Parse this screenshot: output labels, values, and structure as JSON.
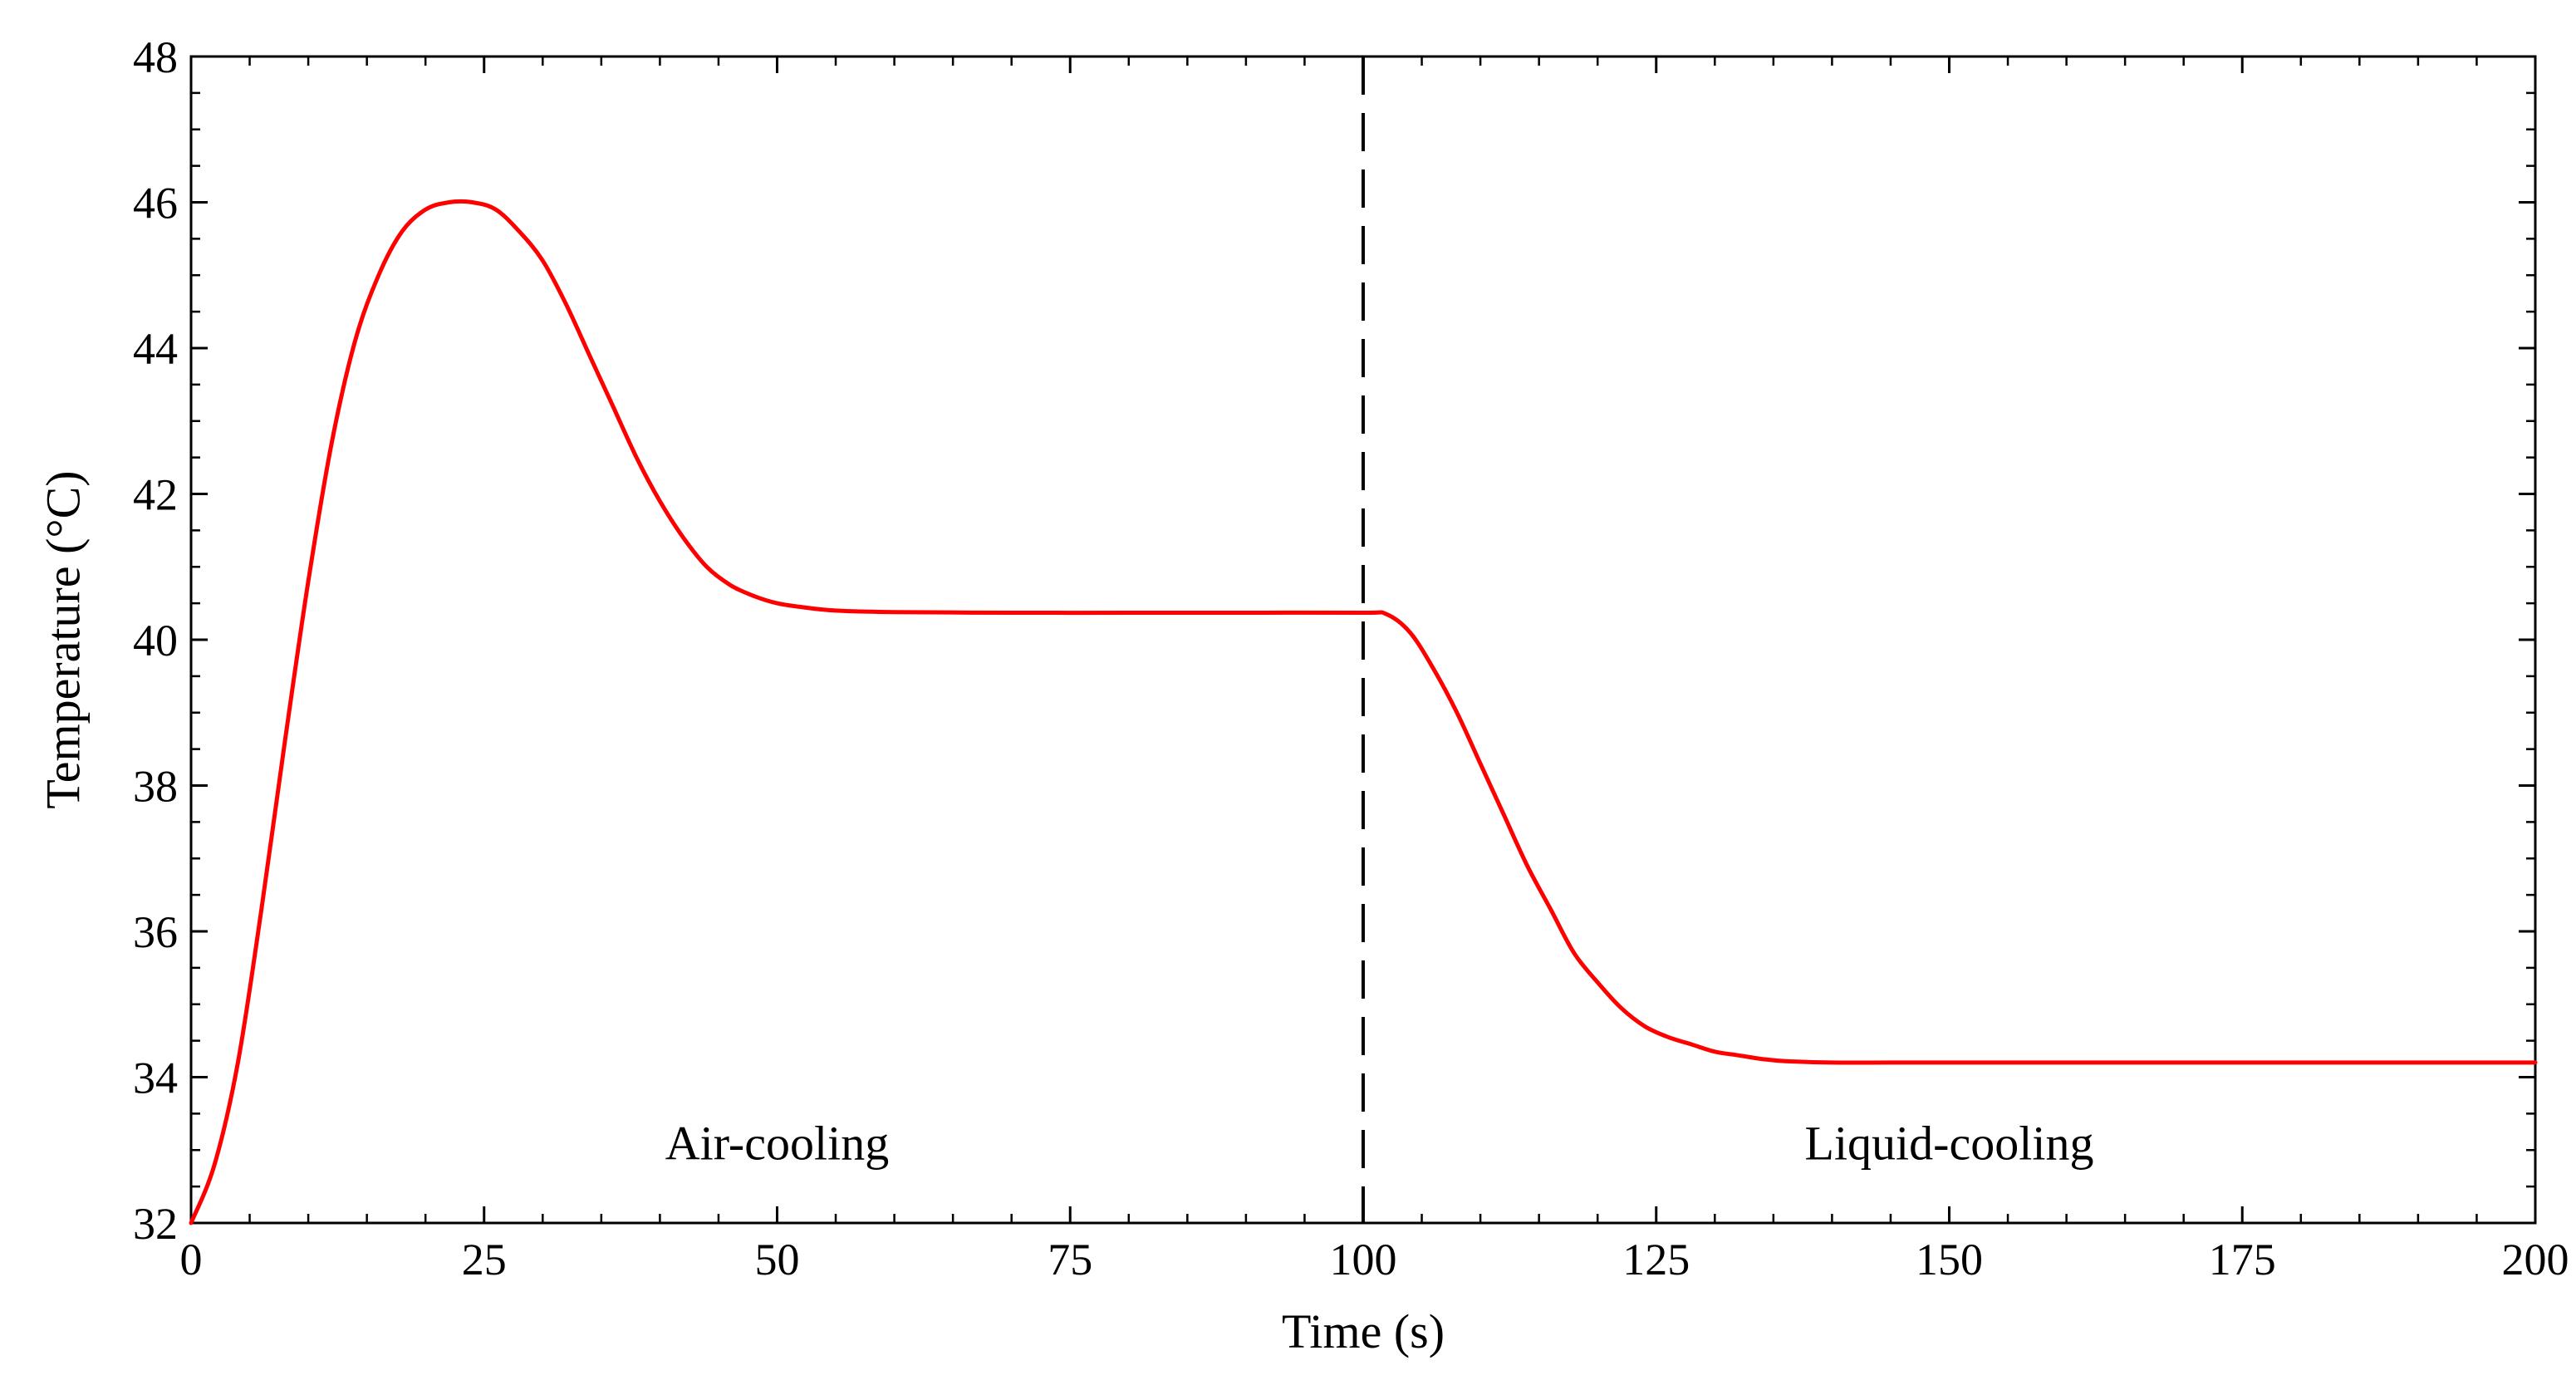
{
  "chart_data": {
    "type": "line",
    "title": "",
    "xlabel": "Time (s)",
    "ylabel": "Temperature (°C)",
    "xlim": [
      0,
      200
    ],
    "ylim": [
      32,
      48
    ],
    "xticks": [
      0,
      25,
      50,
      75,
      100,
      125,
      150,
      175,
      200
    ],
    "yticks": [
      32,
      34,
      36,
      38,
      40,
      42,
      44,
      46,
      48
    ],
    "grid": false,
    "series": [
      {
        "name": "Temperature",
        "color": "#ff0000",
        "x": [
          0,
          2,
          4,
          6,
          8,
          10,
          12,
          14,
          16,
          18,
          20,
          22,
          24,
          26,
          28,
          30,
          32,
          34,
          36,
          38,
          40,
          42,
          44,
          46,
          48,
          50,
          52,
          55,
          60,
          70,
          80,
          90,
          100,
          102,
          104,
          106,
          108,
          110,
          112,
          114,
          116,
          118,
          120,
          122,
          124,
          126,
          128,
          130,
          132,
          134,
          136,
          140,
          145,
          150,
          160,
          175,
          200
        ],
        "y": [
          32.0,
          32.8,
          34.2,
          36.3,
          38.6,
          40.8,
          42.7,
          44.1,
          45.0,
          45.6,
          45.9,
          46.0,
          46.0,
          45.9,
          45.6,
          45.2,
          44.6,
          43.9,
          43.2,
          42.5,
          41.9,
          41.4,
          41.0,
          40.75,
          40.6,
          40.5,
          40.45,
          40.4,
          40.38,
          40.37,
          40.37,
          40.37,
          40.37,
          40.35,
          40.1,
          39.6,
          39.0,
          38.3,
          37.6,
          36.9,
          36.3,
          35.7,
          35.3,
          34.95,
          34.7,
          34.55,
          34.45,
          34.35,
          34.3,
          34.25,
          34.22,
          34.2,
          34.2,
          34.2,
          34.2,
          34.2,
          34.2
        ]
      }
    ],
    "divider": {
      "x": 100,
      "style": "dashed"
    },
    "annotations": [
      {
        "text": "Air-cooling",
        "x": 50,
        "y": 33.1
      },
      {
        "text": "Liquid-cooling",
        "x": 150,
        "y": 33.1
      }
    ]
  }
}
